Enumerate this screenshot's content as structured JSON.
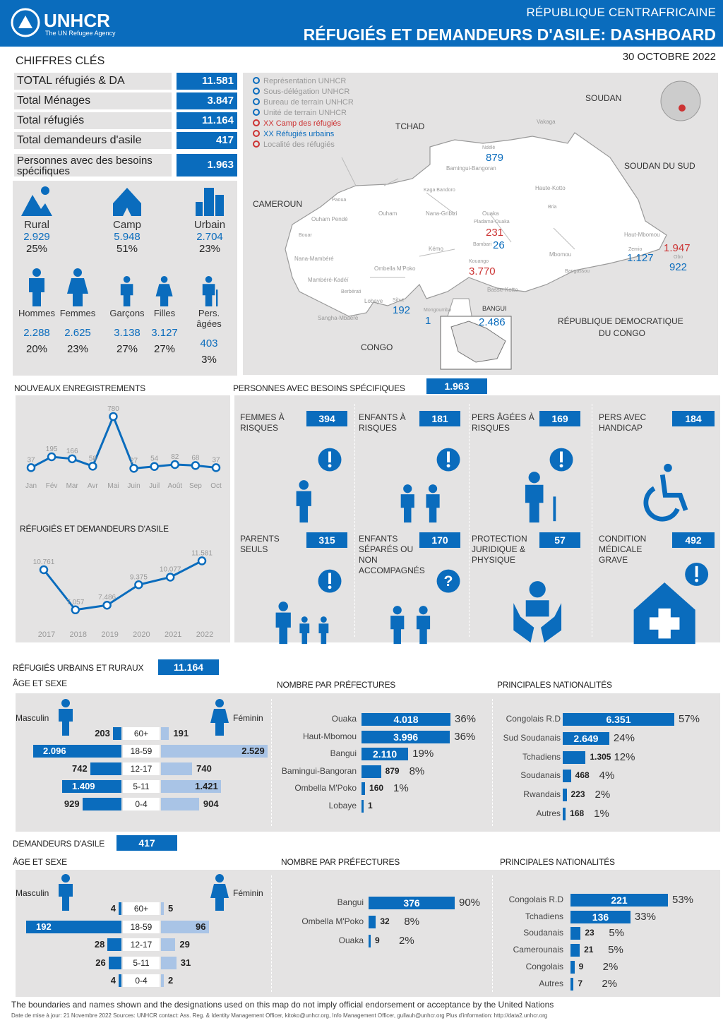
{
  "header": {
    "org": "UNHCR",
    "org_sub": "The UN Refugee Agency",
    "country": "RÉPUBLIQUE CENTRAFRICAINE",
    "title": "RÉFUGIÉS ET DEMANDEURS D'ASILE: DASHBOARD",
    "date": "30 OCTOBRE 2022"
  },
  "key_figures": {
    "title": "CHIFFRES CLÉS",
    "rows": [
      {
        "label": "TOTAL réfugiés & DA",
        "value": "11.581"
      },
      {
        "label": "Total Ménages",
        "value": "3.847"
      },
      {
        "label": "Total réfugiés",
        "value": "11.164"
      },
      {
        "label": "Total demandeurs d'asile",
        "value": "417"
      },
      {
        "label": "Personnes avec des besoins spécifiques",
        "value": "1.963"
      }
    ]
  },
  "settlement": [
    {
      "label": "Rural",
      "value": "2.929",
      "pct": "25%",
      "icon": "rural-icon"
    },
    {
      "label": "Camp",
      "value": "5.948",
      "pct": "51%",
      "icon": "camp-icon"
    },
    {
      "label": "Urbain",
      "value": "2.704",
      "pct": "23%",
      "icon": "urban-icon"
    }
  ],
  "demography": [
    {
      "label": "Hommes",
      "value": "2.288",
      "pct": "20%"
    },
    {
      "label": "Femmes",
      "value": "2.625",
      "pct": "23%"
    },
    {
      "label": "Garçons",
      "value": "3.138",
      "pct": "27%"
    },
    {
      "label": "Filles",
      "value": "3.127",
      "pct": "27%"
    },
    {
      "label": "Pers. âgées",
      "value": "403",
      "pct": "3%"
    }
  ],
  "map": {
    "legend": [
      "Représentation UNHCR",
      "Sous-délégation UNHCR",
      "Bureau de terrain UNHCR",
      "Unité de terrain UNHCR",
      "XX Camp des réfugiés",
      "XX Réfugiés urbains",
      "Localité des réfugiés"
    ],
    "countries": [
      "SOUDAN",
      "TCHAD",
      "SOUDAN DU SUD",
      "CAMEROUN",
      "RÉPUBLIQUE DEMOCRATIQUE",
      "DU CONGO",
      "CONGO",
      "BANGUI"
    ],
    "prefectures": [
      "Vakaga",
      "Bamingui-Bangoran",
      "Haute-Kotto",
      "Nana-Gribizi",
      "Ouaka",
      "Ouham",
      "Ouham Pendé",
      "Nana-Mambéré",
      "Mambéré-Kadéï",
      "Lobaye",
      "Ombella M'Poko",
      "Mbomou",
      "Haut-Mbomou",
      "Basse-Kotto",
      "Kémo",
      "Sangha-Mbaéré"
    ],
    "towns": [
      "Ndélé",
      "Bria",
      "Paoua",
      "Bouar",
      "Berbérati",
      "Kaga Bandoro",
      "Bambari",
      "Pladama-Ouaka",
      "Bangassou",
      "Obo",
      "Zemio",
      "Sibut",
      "Mongoumba",
      "Kouango"
    ],
    "figures": [
      {
        "label": "879"
      },
      {
        "label": "231"
      },
      {
        "label": "26"
      },
      {
        "label": "3.770"
      },
      {
        "label": "192"
      },
      {
        "label": "1"
      },
      {
        "label": "2.486"
      },
      {
        "label": "1.947"
      },
      {
        "label": "1.127"
      },
      {
        "label": "922"
      }
    ]
  },
  "new_reg": {
    "title": "NOUVEAUX ENREGISTREMENTS",
    "chart_data": {
      "type": "line",
      "categories": [
        "Jan",
        "Fév",
        "Mar",
        "Avr",
        "Mai",
        "Juin",
        "Juil",
        "Août",
        "Sep",
        "Oct"
      ],
      "values": [
        37,
        195,
        166,
        58,
        780,
        27,
        54,
        82,
        68,
        37
      ]
    }
  },
  "trend": {
    "title": "RÉFUGIÉS ET DEMANDEURS D'ASILE",
    "chart_data": {
      "type": "line",
      "categories": [
        "2017",
        "2018",
        "2019",
        "2020",
        "2021",
        "2022"
      ],
      "x": [
        2017,
        2018,
        2019,
        2020,
        2021,
        2022
      ],
      "values": [
        10761,
        7057,
        7486,
        9375,
        10077,
        11581
      ],
      "labels": [
        "10.761",
        "7.057",
        "7.486",
        "9.375",
        "10.077",
        "11.581"
      ]
    }
  },
  "specific_needs": {
    "title": "PERSONNES AVEC BESOINS SPÉCIFIQUES",
    "total": "1.963",
    "items": [
      {
        "label": "FEMMES À RISQUES",
        "value": "394"
      },
      {
        "label": "ENFANTS À RISQUES",
        "value": "181"
      },
      {
        "label": "PERS ÂGÉES À RISQUES",
        "value": "169"
      },
      {
        "label": "PERS AVEC HANDICAP",
        "value": "184"
      },
      {
        "label": "PARENTS SEULS",
        "value": "315"
      },
      {
        "label": "ENFANTS SÉPARÉS OU NON ACCOMPAGNÉS",
        "value": "170"
      },
      {
        "label": "PROTECTION JURIDIQUE & PHYSIQUE",
        "value": "57"
      },
      {
        "label": "CONDITION MÉDICALE GRAVE",
        "value": "492"
      }
    ]
  },
  "refugees": {
    "title": "RÉFUGIÉS URBAINS ET RURAUX",
    "total": "11.164",
    "age_title": "ÂGE ET SEXE",
    "male": "Masculin",
    "female": "Féminin",
    "pyramid": {
      "type": "bar",
      "categories": [
        "60+",
        "18-59",
        "12-17",
        "5-11",
        "0-4"
      ],
      "series": [
        {
          "name": "Masculin",
          "values": [
            203,
            2096,
            742,
            1409,
            929
          ]
        },
        {
          "name": "Féminin",
          "values": [
            191,
            2529,
            740,
            1421,
            904
          ]
        }
      ],
      "labels_m": [
        "203",
        "2.096",
        "742",
        "1.409",
        "929"
      ],
      "labels_f": [
        "191",
        "2.529",
        "740",
        "1.421",
        "904"
      ]
    },
    "pref_title": "NOMBRE PAR PRÉFECTURES",
    "pref": {
      "type": "bar",
      "categories": [
        "Ouaka",
        "Haut-Mbomou",
        "Bangui",
        "Bamingui-Bangoran",
        "Ombella M'Poko",
        "Lobaye"
      ],
      "values": [
        4018,
        3996,
        2110,
        879,
        160,
        1
      ],
      "labels": [
        "4.018",
        "3.996",
        "2.110",
        "879",
        "160",
        "1"
      ],
      "pcts": [
        "36%",
        "36%",
        "19%",
        "8%",
        "1%",
        ""
      ]
    },
    "nat_title": "PRINCIPALES NATIONALITÉS",
    "nat": {
      "type": "bar",
      "categories": [
        "Congolais R.D",
        "Sud Soudanais",
        "Tchadiens",
        "Soudanais",
        "Rwandais",
        "Autres"
      ],
      "values": [
        6351,
        2649,
        1305,
        468,
        223,
        168
      ],
      "labels": [
        "6.351",
        "2.649",
        "1.305",
        "468",
        "223",
        "168"
      ],
      "pcts": [
        "57%",
        "24%",
        "12%",
        "4%",
        "2%",
        "1%"
      ]
    }
  },
  "asylum": {
    "title": "DEMANDEURS D'ASILE",
    "total": "417",
    "age_title": "ÂGE ET SEXE",
    "male": "Masculin",
    "female": "Féminin",
    "pyramid": {
      "type": "bar",
      "categories": [
        "60+",
        "18-59",
        "12-17",
        "5-11",
        "0-4"
      ],
      "series": [
        {
          "name": "Masculin",
          "values": [
            4,
            192,
            28,
            26,
            4
          ]
        },
        {
          "name": "Féminin",
          "values": [
            5,
            96,
            29,
            31,
            2
          ]
        }
      ],
      "labels_m": [
        "4",
        "192",
        "28",
        "26",
        "4"
      ],
      "labels_f": [
        "5",
        "96",
        "29",
        "31",
        "2"
      ]
    },
    "pref_title": "NOMBRE PAR PRÉFECTURES",
    "pref": {
      "type": "bar",
      "categories": [
        "Bangui",
        "Ombella M'Poko",
        "Ouaka"
      ],
      "values": [
        376,
        32,
        9
      ],
      "labels": [
        "376",
        "32",
        "9"
      ],
      "pcts": [
        "90%",
        "8%",
        "2%"
      ]
    },
    "nat_title": "PRINCIPALES NATIONALITÉS",
    "nat": {
      "type": "bar",
      "categories": [
        "Congolais R.D",
        "Tchadiens",
        "Soudanais",
        "Camerounais",
        "Congolais",
        "Autres"
      ],
      "values": [
        221,
        136,
        23,
        21,
        9,
        7
      ],
      "labels": [
        "221",
        "136",
        "23",
        "21",
        "9",
        "7"
      ],
      "pcts": [
        "53%",
        "33%",
        "5%",
        "5%",
        "2%",
        "2%"
      ]
    }
  },
  "footer": {
    "disclaimer": "The boundaries and names shown and the designations used on this map do not imply official endorsement or acceptance by the United Nations",
    "meta": "Date de mise à jour: 21 Novembre 2022     Sources:  UNHCR    contact:   Ass. Reg. & Identity Management Officer, kitoko@unhcr.org, Info Management Officer, gullauh@unhcr.org      Plus d'information: http://data2.unhcr.org"
  }
}
